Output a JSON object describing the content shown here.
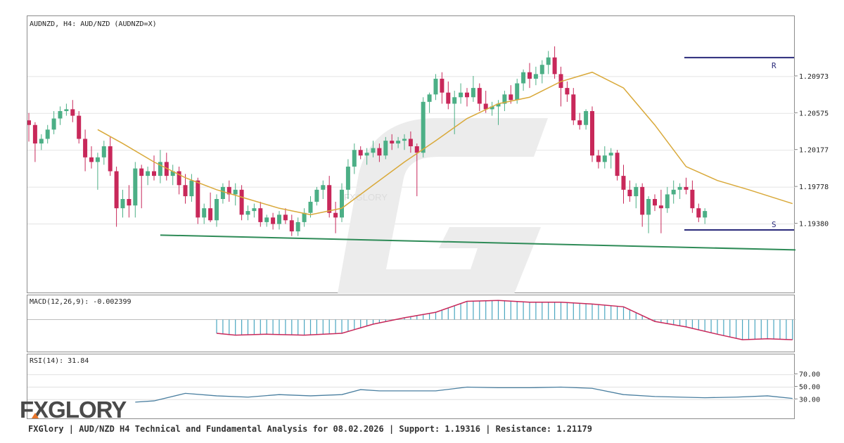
{
  "footer": {
    "text": "FXGlory | AUD/NZD H4 Technical and Fundamental Analysis for 08.02.2026 | Support: 1.19316 | Resistance: 1.21179"
  },
  "logo": {
    "text": "FXGLORY",
    "accent": "#e8752a"
  },
  "watermark": {
    "text": "FXGLORY"
  },
  "colors": {
    "up": "#4caf86",
    "down": "#c8285a",
    "sma": "#d9a93a",
    "trend": "#2e8b57",
    "levels": "#2a2a7a",
    "macd_hist": "#4aa6c0",
    "macd_signal": "#c8285a",
    "rsi": "#4a7fa0"
  },
  "chart_data": [
    {
      "type": "candlestick",
      "title": "AUDNZD, H4: AUD/NZD (AUDNZD=X)",
      "ylim": [
        1.187,
        1.2155
      ],
      "y_ticks": [
        "1.20973",
        "1.20575",
        "1.20177",
        "1.19778",
        "1.19380"
      ],
      "grid": true,
      "levels": [
        {
          "label": "R",
          "value": 1.21179
        },
        {
          "label": "S",
          "value": 1.19316
        }
      ],
      "candles": [
        [
          1.205,
          1.2058,
          1.2027,
          1.2045
        ],
        [
          1.2045,
          1.2048,
          1.2005,
          1.2025
        ],
        [
          1.2025,
          1.2035,
          1.2018,
          1.203
        ],
        [
          1.203,
          1.2045,
          1.2025,
          1.204
        ],
        [
          1.204,
          1.206,
          1.2035,
          1.2052
        ],
        [
          1.2052,
          1.2065,
          1.2045,
          1.206
        ],
        [
          1.206,
          1.2068,
          1.2055,
          1.2062
        ],
        [
          1.2062,
          1.2072,
          1.2048,
          1.2055
        ],
        [
          1.2055,
          1.206,
          1.2025,
          1.203
        ],
        [
          1.203,
          1.204,
          1.1995,
          1.201
        ],
        [
          1.201,
          1.2022,
          1.1998,
          1.2005
        ],
        [
          1.2005,
          1.2015,
          1.1975,
          1.201
        ],
        [
          1.201,
          1.2028,
          1.2002,
          1.2022
        ],
        [
          1.2022,
          1.2032,
          1.199,
          1.1995
        ],
        [
          1.1995,
          1.2,
          1.1935,
          1.1955
        ],
        [
          1.1955,
          1.1975,
          1.1945,
          1.1965
        ],
        [
          1.1965,
          1.198,
          1.1945,
          1.1958
        ],
        [
          1.1958,
          1.2005,
          1.1945,
          1.1998
        ],
        [
          1.1998,
          1.2002,
          1.1955,
          1.199
        ],
        [
          1.199,
          1.2,
          1.198,
          1.1995
        ],
        [
          1.1995,
          1.2012,
          1.1985,
          1.199
        ],
        [
          1.199,
          1.2018,
          1.1982,
          1.2005
        ],
        [
          1.2005,
          1.2015,
          1.1985,
          1.199
        ],
        [
          1.199,
          1.2002,
          1.198,
          1.1995
        ],
        [
          1.1995,
          1.2,
          1.197,
          1.198
        ],
        [
          1.198,
          1.1992,
          1.196,
          1.1968
        ],
        [
          1.1968,
          1.1992,
          1.1962,
          1.1985
        ],
        [
          1.1985,
          1.1988,
          1.1938,
          1.1945
        ],
        [
          1.1945,
          1.196,
          1.1938,
          1.1955
        ],
        [
          1.1955,
          1.1972,
          1.194,
          1.1942
        ],
        [
          1.1942,
          1.197,
          1.1935,
          1.1965
        ],
        [
          1.1965,
          1.1982,
          1.196,
          1.1978
        ],
        [
          1.1978,
          1.1985,
          1.1962,
          1.197
        ],
        [
          1.197,
          1.1982,
          1.1958,
          1.1975
        ],
        [
          1.1975,
          1.198,
          1.1942,
          1.1948
        ],
        [
          1.1948,
          1.1958,
          1.1942,
          1.1952
        ],
        [
          1.1952,
          1.196,
          1.1945,
          1.1955
        ],
        [
          1.1955,
          1.1962,
          1.1935,
          1.194
        ],
        [
          1.194,
          1.1948,
          1.1935,
          1.1945
        ],
        [
          1.1945,
          1.195,
          1.1932,
          1.1938
        ],
        [
          1.1938,
          1.1952,
          1.1932,
          1.1948
        ],
        [
          1.1948,
          1.1955,
          1.1938,
          1.1942
        ],
        [
          1.1942,
          1.1948,
          1.1925,
          1.193
        ],
        [
          1.193,
          1.1945,
          1.1925,
          1.194
        ],
        [
          1.194,
          1.1955,
          1.1935,
          1.195
        ],
        [
          1.195,
          1.1968,
          1.1945,
          1.1962
        ],
        [
          1.1962,
          1.1978,
          1.1958,
          1.1975
        ],
        [
          1.1975,
          1.1985,
          1.1965,
          1.198
        ],
        [
          1.198,
          1.199,
          1.1945,
          1.195
        ],
        [
          1.195,
          1.1962,
          1.1928,
          1.1945
        ],
        [
          1.1945,
          1.1982,
          1.194,
          1.1975
        ],
        [
          1.1975,
          1.2008,
          1.1965,
          1.2
        ],
        [
          1.2,
          1.2025,
          1.1992,
          1.2018
        ],
        [
          1.2018,
          1.2022,
          1.2008,
          1.2012
        ],
        [
          1.2012,
          1.202,
          1.2002,
          1.2015
        ],
        [
          1.2015,
          1.2028,
          1.201,
          1.202
        ],
        [
          1.202,
          1.2025,
          1.2005,
          1.2012
        ],
        [
          1.2012,
          1.2032,
          1.2008,
          1.2028
        ],
        [
          1.2028,
          1.2035,
          1.2018,
          1.2025
        ],
        [
          1.2025,
          1.2032,
          1.202,
          1.2028
        ],
        [
          1.2028,
          1.2035,
          1.2018,
          1.203
        ],
        [
          1.203,
          1.2038,
          1.2015,
          1.2022
        ],
        [
          1.2022,
          1.2025,
          1.1968,
          1.2015
        ],
        [
          1.2015,
          1.2075,
          1.201,
          1.207
        ],
        [
          1.207,
          1.208,
          1.2058,
          1.2078
        ],
        [
          1.2078,
          1.21,
          1.2072,
          1.2095
        ],
        [
          1.2095,
          1.2102,
          1.2068,
          1.208
        ],
        [
          1.208,
          1.2092,
          1.2062,
          1.2068
        ],
        [
          1.2068,
          1.2082,
          1.2035,
          1.2075
        ],
        [
          1.2075,
          1.209,
          1.2068,
          1.208
        ],
        [
          1.208,
          1.2085,
          1.2065,
          1.2075
        ],
        [
          1.2075,
          1.2098,
          1.207,
          1.2085
        ],
        [
          1.2085,
          1.209,
          1.206,
          1.2068
        ],
        [
          1.2068,
          1.2082,
          1.2058,
          1.2062
        ],
        [
          1.2062,
          1.207,
          1.2055,
          1.2065
        ],
        [
          1.2065,
          1.2072,
          1.2045,
          1.2068
        ],
        [
          1.2068,
          1.2082,
          1.206,
          1.2078
        ],
        [
          1.2078,
          1.2088,
          1.2068,
          1.2072
        ],
        [
          1.2072,
          1.2095,
          1.2068,
          1.209
        ],
        [
          1.209,
          1.2105,
          1.2082,
          1.2102
        ],
        [
          1.2102,
          1.2112,
          1.2085,
          1.2095
        ],
        [
          1.2095,
          1.2108,
          1.2088,
          1.21
        ],
        [
          1.21,
          1.2115,
          1.209,
          1.211
        ],
        [
          1.211,
          1.2125,
          1.21,
          1.2118
        ],
        [
          1.2118,
          1.213,
          1.2095,
          1.21
        ],
        [
          1.21,
          1.2108,
          1.2065,
          1.2085
        ],
        [
          1.2085,
          1.2092,
          1.207,
          1.2078
        ],
        [
          1.2078,
          1.2085,
          1.2045,
          1.205
        ],
        [
          1.205,
          1.2058,
          1.204,
          1.2045
        ],
        [
          1.2045,
          1.2062,
          1.204,
          1.206
        ],
        [
          1.206,
          1.2065,
          1.2005,
          1.2012
        ],
        [
          1.2012,
          1.2018,
          1.1998,
          1.2005
        ],
        [
          1.2005,
          1.2022,
          1.1998,
          1.2012
        ],
        [
          1.2012,
          1.202,
          1.1998,
          1.2015
        ],
        [
          1.2015,
          1.2018,
          1.1985,
          1.199
        ],
        [
          1.199,
          1.2002,
          1.196,
          1.1975
        ],
        [
          1.1975,
          1.1985,
          1.1962,
          1.1968
        ],
        [
          1.1968,
          1.1982,
          1.1955,
          1.1978
        ],
        [
          1.1978,
          1.1982,
          1.1935,
          1.1948
        ],
        [
          1.1948,
          1.1968,
          1.1928,
          1.1965
        ],
        [
          1.1965,
          1.197,
          1.1952,
          1.1958
        ],
        [
          1.1958,
          1.1975,
          1.1928,
          1.1955
        ],
        [
          1.1955,
          1.1978,
          1.195,
          1.197
        ],
        [
          1.197,
          1.1985,
          1.196,
          1.1975
        ],
        [
          1.1975,
          1.1982,
          1.1965,
          1.1978
        ],
        [
          1.1978,
          1.1988,
          1.197,
          1.1975
        ],
        [
          1.1975,
          1.1985,
          1.195,
          1.1955
        ],
        [
          1.1955,
          1.196,
          1.194,
          1.1945
        ],
        [
          1.1945,
          1.1955,
          1.1938,
          1.1952
        ]
      ],
      "sma": [
        [
          11,
          1.204
        ],
        [
          15,
          1.2025
        ],
        [
          20,
          1.2005
        ],
        [
          25,
          1.1988
        ],
        [
          30,
          1.1975
        ],
        [
          35,
          1.1965
        ],
        [
          40,
          1.1955
        ],
        [
          45,
          1.1948
        ],
        [
          50,
          1.1955
        ],
        [
          55,
          1.198
        ],
        [
          60,
          1.2005
        ],
        [
          65,
          1.2028
        ],
        [
          70,
          1.2052
        ],
        [
          75,
          1.2068
        ],
        [
          80,
          1.2075
        ],
        [
          85,
          1.2092
        ],
        [
          90,
          1.2102
        ],
        [
          95,
          1.2085
        ],
        [
          100,
          1.2045
        ],
        [
          105,
          1.2
        ],
        [
          110,
          1.1985
        ],
        [
          115,
          1.1975
        ],
        [
          122,
          1.196
        ]
      ],
      "trendline": [
        [
          21,
          1.1926
        ],
        [
          122,
          1.191
        ]
      ]
    },
    {
      "type": "line",
      "title": "MACD(12,26,9): -0.002399",
      "ylim": [
        -0.0035,
        0.0025
      ],
      "zero_line": true,
      "histogram_start": 30,
      "signal": [
        [
          30,
          -0.0015
        ],
        [
          33,
          -0.0017
        ],
        [
          38,
          -0.0016
        ],
        [
          44,
          -0.0017
        ],
        [
          50,
          -0.0015
        ],
        [
          55,
          -0.0005
        ],
        [
          60,
          0.0002
        ],
        [
          65,
          0.0008
        ],
        [
          70,
          0.002
        ],
        [
          75,
          0.0021
        ],
        [
          80,
          0.0019
        ],
        [
          85,
          0.0019
        ],
        [
          90,
          0.0017
        ],
        [
          95,
          0.0014
        ],
        [
          100,
          -0.0002
        ],
        [
          105,
          -0.0008
        ],
        [
          110,
          -0.0016
        ],
        [
          114,
          -0.0022
        ],
        [
          118,
          -0.0021
        ],
        [
          122,
          -0.0022
        ]
      ]
    },
    {
      "type": "line",
      "title": "RSI(14): 31.84",
      "ylim": [
        0,
        100
      ],
      "y_ticks": [
        "70.00",
        "50.00",
        "30.00"
      ],
      "reference_lines": [
        70,
        50,
        30
      ],
      "values": [
        [
          17,
          26
        ],
        [
          20,
          28
        ],
        [
          25,
          40
        ],
        [
          30,
          36
        ],
        [
          35,
          34
        ],
        [
          40,
          38
        ],
        [
          45,
          36
        ],
        [
          50,
          38
        ],
        [
          53,
          46
        ],
        [
          56,
          44
        ],
        [
          60,
          44
        ],
        [
          65,
          44
        ],
        [
          70,
          50
        ],
        [
          75,
          49
        ],
        [
          80,
          49
        ],
        [
          85,
          50
        ],
        [
          90,
          48
        ],
        [
          95,
          38
        ],
        [
          100,
          35
        ],
        [
          104,
          34
        ],
        [
          108,
          33
        ],
        [
          113,
          34
        ],
        [
          118,
          36
        ],
        [
          122,
          31.84
        ]
      ]
    }
  ]
}
